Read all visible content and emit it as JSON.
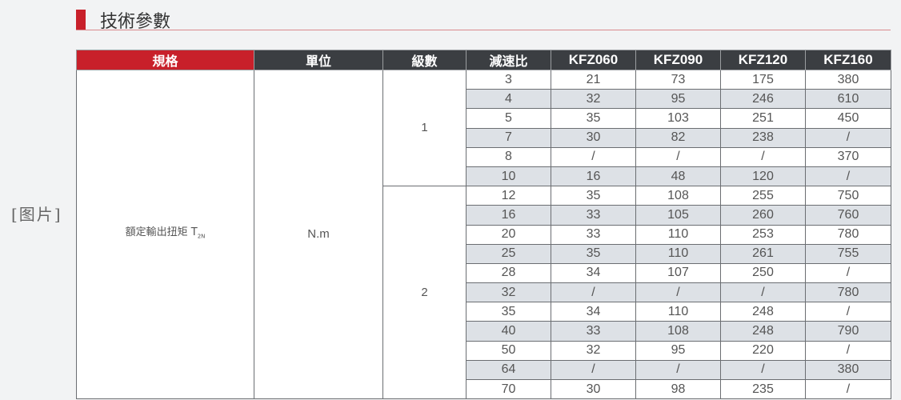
{
  "placeholder_image": "[图片]",
  "section_title": "技術參數",
  "colors": {
    "accent_red": "#c8202a",
    "header_dark": "#3b3e42",
    "stripe": "#dde1e6"
  },
  "table": {
    "headers": [
      "規格",
      "單位",
      "級數",
      "減速比",
      "KFZ060",
      "KFZ090",
      "KFZ120",
      "KFZ160"
    ],
    "spec": "額定輸出扭矩 T",
    "spec_sub": "2N",
    "unit": "N.m",
    "stages": [
      {
        "stage": "1",
        "rows": [
          [
            "3",
            "21",
            "73",
            "175",
            "380"
          ],
          [
            "4",
            "32",
            "95",
            "246",
            "610"
          ],
          [
            "5",
            "35",
            "103",
            "251",
            "450"
          ],
          [
            "7",
            "30",
            "82",
            "238",
            "/"
          ],
          [
            "8",
            "/",
            "/",
            "/",
            "370"
          ],
          [
            "10",
            "16",
            "48",
            "120",
            "/"
          ]
        ]
      },
      {
        "stage": "2",
        "rows": [
          [
            "12",
            "35",
            "108",
            "255",
            "750"
          ],
          [
            "16",
            "33",
            "105",
            "260",
            "760"
          ],
          [
            "20",
            "33",
            "110",
            "253",
            "780"
          ],
          [
            "25",
            "35",
            "110",
            "261",
            "755"
          ],
          [
            "28",
            "34",
            "107",
            "250",
            "/"
          ],
          [
            "32",
            "/",
            "/",
            "/",
            "780"
          ],
          [
            "35",
            "34",
            "110",
            "248",
            "/"
          ],
          [
            "40",
            "33",
            "108",
            "248",
            "790"
          ],
          [
            "50",
            "32",
            "95",
            "220",
            "/"
          ],
          [
            "64",
            "/",
            "/",
            "/",
            "380"
          ],
          [
            "70",
            "30",
            "98",
            "235",
            "/"
          ]
        ]
      }
    ]
  }
}
